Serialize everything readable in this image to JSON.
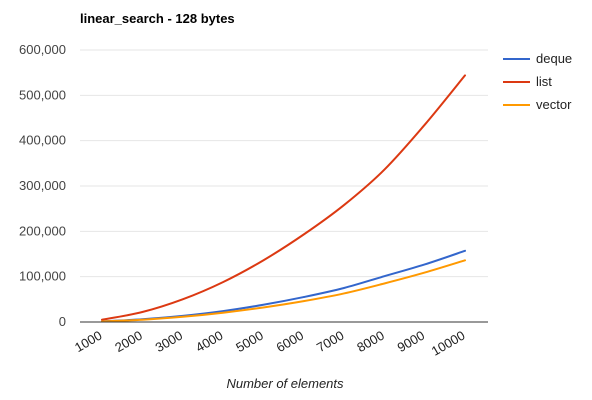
{
  "chart_data": {
    "type": "line",
    "title": "linear_search - 128 bytes",
    "xlabel": "Number of elements",
    "ylabel": "",
    "x": [
      1000,
      2000,
      3000,
      4000,
      5000,
      6000,
      7000,
      8000,
      9000,
      10000
    ],
    "x_tick_labels": [
      "1000",
      "2000",
      "3000",
      "4000",
      "5000",
      "6000",
      "7000",
      "8000",
      "9000",
      "10000"
    ],
    "y_tick_labels": [
      "0",
      "100,000",
      "200,000",
      "300,000",
      "400,000",
      "500,000",
      "600,000"
    ],
    "ylim": [
      0,
      600000
    ],
    "grid": true,
    "legend_position": "right",
    "series": [
      {
        "name": "deque",
        "color": "#3366cc",
        "values": [
          1500,
          6000,
          13500,
          24000,
          38000,
          55000,
          75000,
          101000,
          127000,
          157000
        ]
      },
      {
        "name": "list",
        "color": "#dc3912",
        "values": [
          5000,
          22000,
          50000,
          88000,
          136000,
          193000,
          258000,
          336000,
          435000,
          544000
        ]
      },
      {
        "name": "vector",
        "color": "#ff9900",
        "values": [
          1200,
          5000,
          11500,
          20500,
          32000,
          46000,
          63000,
          85000,
          109000,
          136000
        ]
      }
    ]
  }
}
